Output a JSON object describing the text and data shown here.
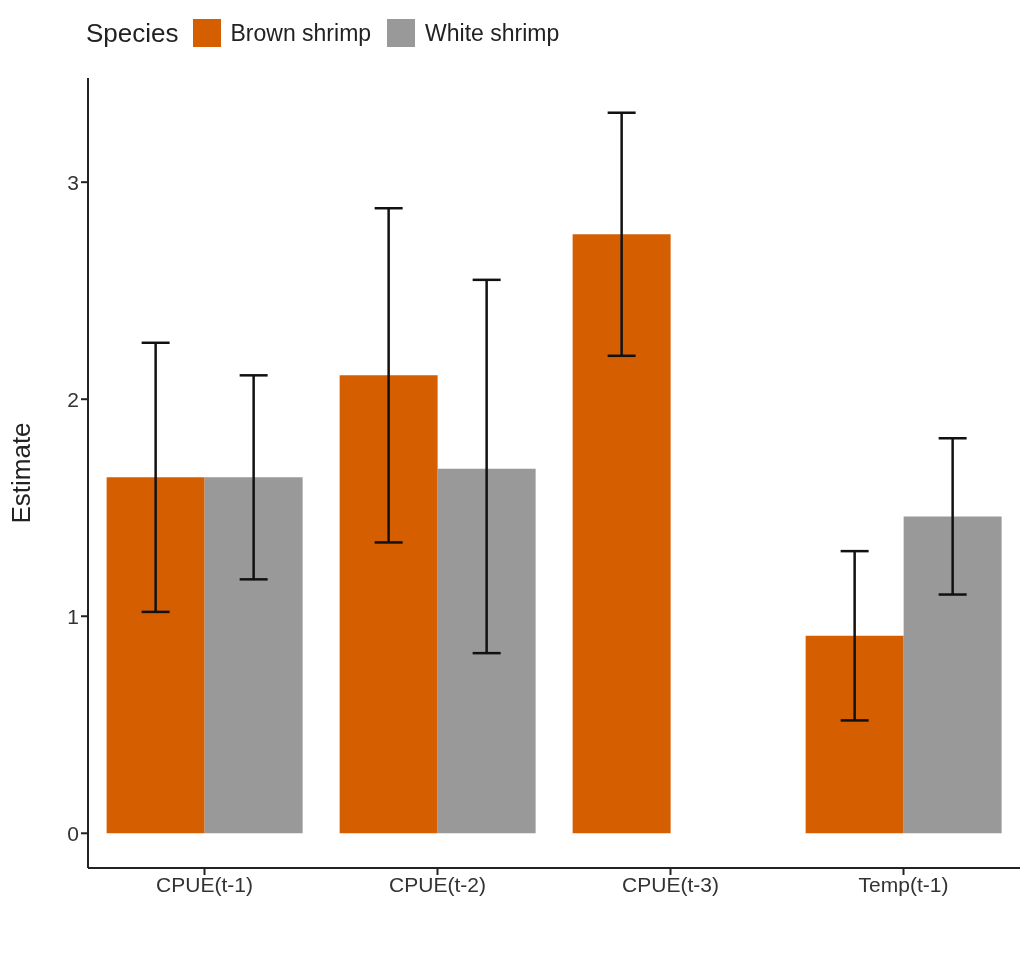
{
  "chart_data": {
    "type": "bar",
    "ylabel": "Estimate",
    "legend_title": "Species",
    "legend": "top",
    "categories": [
      "CPUE(t-1)",
      "CPUE(t-2)",
      "CPUE(t-3)",
      "Temp(t-1)"
    ],
    "series": [
      {
        "name": "Brown shrimp",
        "color": "#d55e00",
        "values": [
          1.64,
          2.11,
          2.76,
          0.91
        ],
        "errors": [
          [
            1.02,
            2.26
          ],
          [
            1.34,
            2.88
          ],
          [
            2.2,
            3.32
          ],
          [
            0.52,
            1.3
          ]
        ]
      },
      {
        "name": "White shrimp",
        "color": "#999999",
        "values": [
          1.64,
          1.68,
          0,
          1.46
        ],
        "errors": [
          [
            1.17,
            2.11
          ],
          [
            0.83,
            2.55
          ],
          [
            0,
            0
          ],
          [
            1.1,
            1.82
          ]
        ]
      }
    ],
    "ylim": [
      -0.16,
      3.48
    ],
    "yticks": [
      0,
      1,
      2,
      3
    ],
    "grid": false
  }
}
